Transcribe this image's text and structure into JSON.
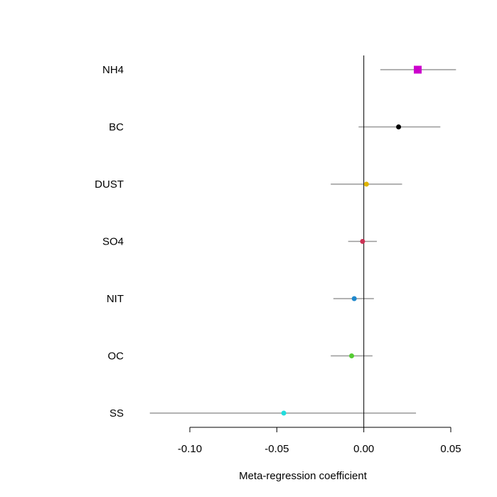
{
  "chart_data": {
    "type": "forest",
    "title": "",
    "xlabel": "Meta-regression coefficient",
    "ylabel": "",
    "xlim": [
      -0.125,
      0.055
    ],
    "xticks": [
      -0.1,
      -0.05,
      0.0,
      0.05
    ],
    "xtick_labels": [
      "-0.10",
      "-0.05",
      "0.00",
      "0.05"
    ],
    "reference_line": 0,
    "grid": false,
    "rows": [
      {
        "label": "NH4",
        "estimate": 0.031,
        "lower": 0.0095,
        "upper": 0.053,
        "color": "#CC00CC",
        "marker": "square"
      },
      {
        "label": "BC",
        "estimate": 0.02,
        "lower": -0.003,
        "upper": 0.044,
        "color": "#000000",
        "marker": "circle"
      },
      {
        "label": "DUST",
        "estimate": 0.0015,
        "lower": -0.019,
        "upper": 0.022,
        "color": "#E0B400",
        "marker": "circle"
      },
      {
        "label": "SO4",
        "estimate": -0.0007,
        "lower": -0.009,
        "upper": 0.0075,
        "color": "#CC3355",
        "marker": "circle"
      },
      {
        "label": "NIT",
        "estimate": -0.0055,
        "lower": -0.0175,
        "upper": 0.0058,
        "color": "#1E88CC",
        "marker": "circle"
      },
      {
        "label": "OC",
        "estimate": -0.007,
        "lower": -0.019,
        "upper": 0.005,
        "color": "#55CC33",
        "marker": "circle"
      },
      {
        "label": "SS",
        "estimate": -0.046,
        "lower": -0.123,
        "upper": 0.03,
        "color": "#22DDDD",
        "marker": "circle"
      }
    ]
  }
}
